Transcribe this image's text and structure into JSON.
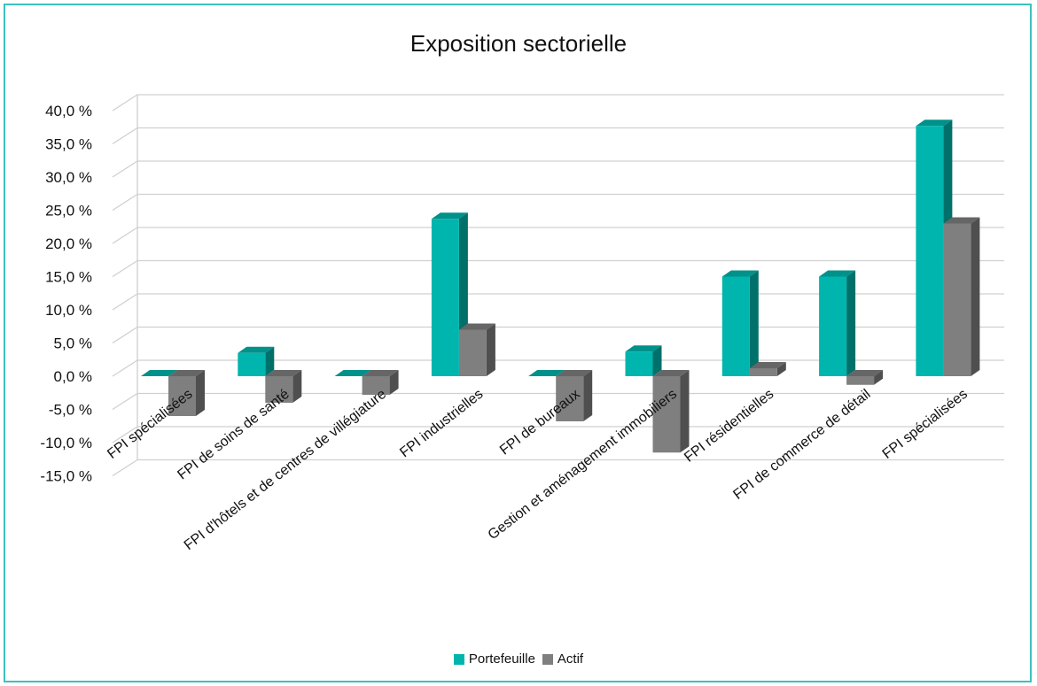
{
  "chart_data": {
    "type": "bar",
    "title": "Exposition sectorielle",
    "categories": [
      "FPI spécialisées",
      "FPI de soins de santé",
      "FPI d'hôtels et de centres de villégiature",
      "FPI industrielles",
      "FPI de bureaux",
      "Gestion et aménagement immobiliers",
      "FPI résidentielles",
      "FPI de commerce de détail",
      "FPI spécialisées"
    ],
    "series": [
      {
        "name": "Portefeuille",
        "color": "#00b5ad",
        "values": [
          0.0,
          3.5,
          0.0,
          23.7,
          0.0,
          3.7,
          15.0,
          15.0,
          37.7
        ]
      },
      {
        "name": "Actif",
        "color": "#7f7f7f",
        "values": [
          -6.0,
          -4.0,
          -2.8,
          7.0,
          -6.8,
          -11.5,
          1.2,
          -1.3,
          23.0
        ]
      }
    ],
    "yticks": [
      "40,0 %",
      "35,0 %",
      "30,0 %",
      "25,0 %",
      "20,0 %",
      "15,0 %",
      "10,0 %",
      "5,0 %",
      "0,0 %",
      "-5,0 %",
      "-10,0 %",
      "-15,0 %"
    ],
    "ylim": [
      -15,
      40
    ],
    "ystep": 5,
    "grid": true,
    "legend_position": "bottom"
  }
}
